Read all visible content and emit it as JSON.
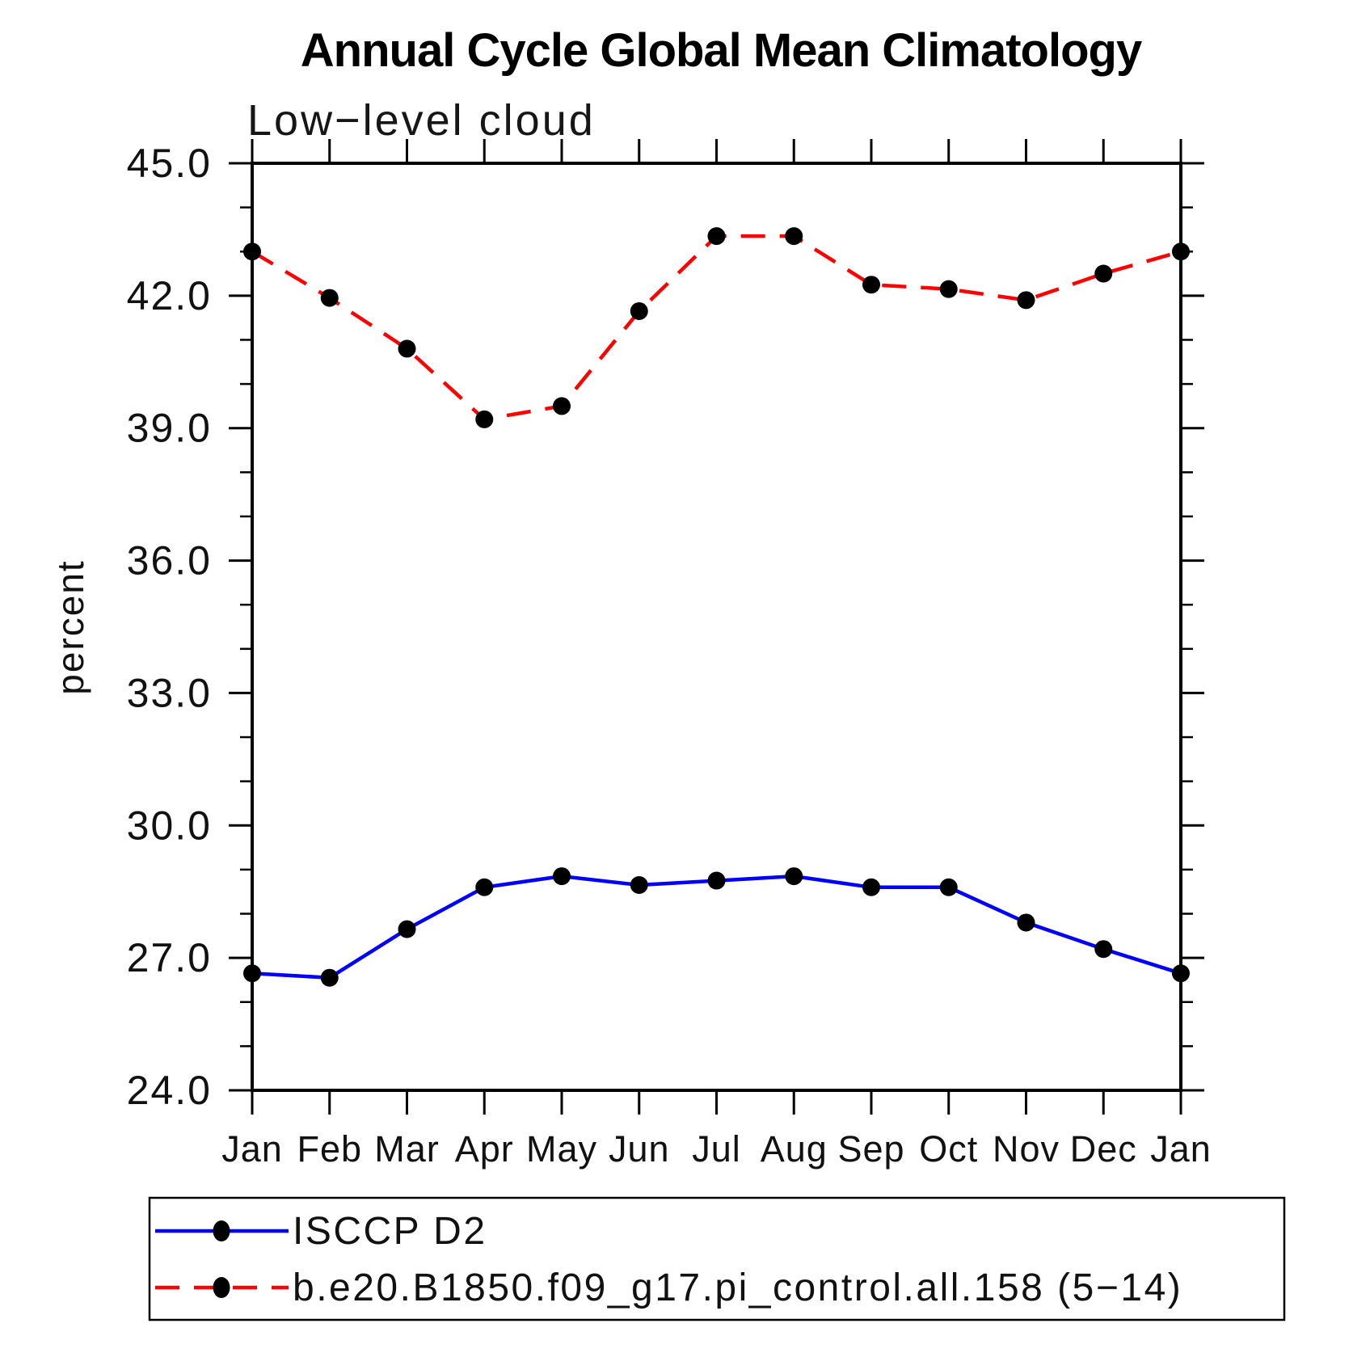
{
  "page": {
    "background_color": "#ffffff",
    "axis_color": "#000000"
  },
  "chart_data": {
    "type": "line",
    "title": "Annual Cycle Global Mean Climatology",
    "subtitle": "Low−level cloud",
    "xlabel": "",
    "ylabel": "percent",
    "categories": [
      "Jan",
      "Feb",
      "Mar",
      "Apr",
      "May",
      "Jun",
      "Jul",
      "Aug",
      "Sep",
      "Oct",
      "Nov",
      "Dec",
      "Jan"
    ],
    "ylim": [
      24.0,
      45.0
    ],
    "ytick_labels": [
      "24.0",
      "27.0",
      "30.0",
      "33.0",
      "36.0",
      "39.0",
      "42.0",
      "45.0"
    ],
    "ytick_major_step": 3.0,
    "ytick_minor_step": 1.0,
    "grid": "off",
    "legend_position": "bottom-left-box",
    "marker_color": "#000000",
    "series": [
      {
        "name": "ISCCP D2",
        "line_style": "solid",
        "color": "#0000ff",
        "marker": "filled-circle",
        "values": [
          26.65,
          26.55,
          27.65,
          28.6,
          28.85,
          28.65,
          28.75,
          28.85,
          28.6,
          28.6,
          27.8,
          27.2,
          26.65
        ]
      },
      {
        "name": "b.e20.B1850.f09_g17.pi_control.all.158 (5−14)",
        "line_style": "dashed",
        "color": "#ff0000",
        "marker": "filled-circle",
        "values": [
          43.0,
          41.95,
          40.8,
          39.2,
          39.5,
          41.65,
          43.35,
          43.35,
          42.25,
          42.15,
          41.9,
          42.5,
          43.0
        ]
      }
    ]
  }
}
